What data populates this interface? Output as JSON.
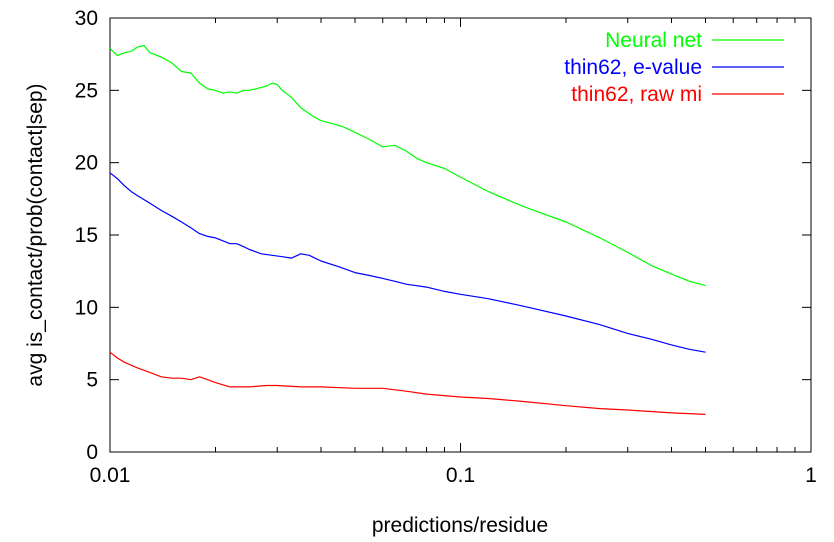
{
  "chart_data": {
    "type": "line",
    "title": "",
    "xlabel": "predictions/residue",
    "ylabel": "avg is_contact/prob(contact|sep)",
    "x_scale": "log",
    "xlim": [
      0.01,
      1
    ],
    "ylim": [
      0,
      30
    ],
    "x_ticks": [
      0.01,
      0.1,
      1
    ],
    "x_tick_labels": [
      "0.01",
      "0.1",
      "1"
    ],
    "y_ticks": [
      0,
      5,
      10,
      15,
      20,
      25,
      30
    ],
    "y_tick_labels": [
      "0",
      "5",
      "10",
      "15",
      "20",
      "25",
      "30"
    ],
    "grid": false,
    "legend_position": "top-right",
    "series": [
      {
        "name": "Neural net",
        "color": "#00ff00",
        "points": [
          [
            0.01,
            27.9
          ],
          [
            0.0105,
            27.4
          ],
          [
            0.011,
            27.6
          ],
          [
            0.0115,
            27.7
          ],
          [
            0.012,
            28.0
          ],
          [
            0.0125,
            28.1
          ],
          [
            0.013,
            27.6
          ],
          [
            0.014,
            27.3
          ],
          [
            0.015,
            26.9
          ],
          [
            0.016,
            26.3
          ],
          [
            0.017,
            26.2
          ],
          [
            0.018,
            25.5
          ],
          [
            0.019,
            25.1
          ],
          [
            0.02,
            25.0
          ],
          [
            0.021,
            24.8
          ],
          [
            0.022,
            24.9
          ],
          [
            0.023,
            24.8
          ],
          [
            0.024,
            25.0
          ],
          [
            0.025,
            25.0
          ],
          [
            0.026,
            25.1
          ],
          [
            0.027,
            25.2
          ],
          [
            0.028,
            25.3
          ],
          [
            0.029,
            25.5
          ],
          [
            0.03,
            25.4
          ],
          [
            0.031,
            25.0
          ],
          [
            0.033,
            24.5
          ],
          [
            0.035,
            23.8
          ],
          [
            0.038,
            23.2
          ],
          [
            0.04,
            22.9
          ],
          [
            0.043,
            22.7
          ],
          [
            0.046,
            22.5
          ],
          [
            0.05,
            22.1
          ],
          [
            0.055,
            21.6
          ],
          [
            0.06,
            21.1
          ],
          [
            0.065,
            21.2
          ],
          [
            0.07,
            20.8
          ],
          [
            0.075,
            20.3
          ],
          [
            0.08,
            20.0
          ],
          [
            0.09,
            19.6
          ],
          [
            0.1,
            19.0
          ],
          [
            0.12,
            18.0
          ],
          [
            0.15,
            17.0
          ],
          [
            0.2,
            15.9
          ],
          [
            0.25,
            14.8
          ],
          [
            0.3,
            13.8
          ],
          [
            0.35,
            12.9
          ],
          [
            0.4,
            12.3
          ],
          [
            0.45,
            11.8
          ],
          [
            0.5,
            11.5
          ]
        ]
      },
      {
        "name": "thin62, e-value",
        "color": "#0000ff",
        "points": [
          [
            0.01,
            19.3
          ],
          [
            0.0105,
            18.9
          ],
          [
            0.011,
            18.4
          ],
          [
            0.0115,
            18.0
          ],
          [
            0.012,
            17.7
          ],
          [
            0.013,
            17.2
          ],
          [
            0.014,
            16.7
          ],
          [
            0.015,
            16.3
          ],
          [
            0.016,
            15.9
          ],
          [
            0.017,
            15.5
          ],
          [
            0.018,
            15.1
          ],
          [
            0.019,
            14.9
          ],
          [
            0.02,
            14.8
          ],
          [
            0.021,
            14.6
          ],
          [
            0.022,
            14.4
          ],
          [
            0.023,
            14.4
          ],
          [
            0.024,
            14.2
          ],
          [
            0.025,
            14.0
          ],
          [
            0.027,
            13.7
          ],
          [
            0.029,
            13.6
          ],
          [
            0.031,
            13.5
          ],
          [
            0.033,
            13.4
          ],
          [
            0.035,
            13.7
          ],
          [
            0.037,
            13.6
          ],
          [
            0.04,
            13.2
          ],
          [
            0.045,
            12.8
          ],
          [
            0.05,
            12.4
          ],
          [
            0.055,
            12.2
          ],
          [
            0.06,
            12.0
          ],
          [
            0.065,
            11.8
          ],
          [
            0.07,
            11.6
          ],
          [
            0.08,
            11.4
          ],
          [
            0.09,
            11.1
          ],
          [
            0.1,
            10.9
          ],
          [
            0.12,
            10.6
          ],
          [
            0.15,
            10.1
          ],
          [
            0.2,
            9.4
          ],
          [
            0.25,
            8.8
          ],
          [
            0.3,
            8.2
          ],
          [
            0.35,
            7.8
          ],
          [
            0.4,
            7.4
          ],
          [
            0.45,
            7.1
          ],
          [
            0.5,
            6.9
          ]
        ]
      },
      {
        "name": "thin62, raw mi",
        "color": "#ff0000",
        "points": [
          [
            0.01,
            6.9
          ],
          [
            0.0105,
            6.5
          ],
          [
            0.011,
            6.2
          ],
          [
            0.012,
            5.8
          ],
          [
            0.013,
            5.5
          ],
          [
            0.014,
            5.2
          ],
          [
            0.015,
            5.1
          ],
          [
            0.016,
            5.1
          ],
          [
            0.017,
            5.0
          ],
          [
            0.018,
            5.2
          ],
          [
            0.019,
            5.0
          ],
          [
            0.02,
            4.8
          ],
          [
            0.022,
            4.5
          ],
          [
            0.025,
            4.5
          ],
          [
            0.028,
            4.6
          ],
          [
            0.03,
            4.6
          ],
          [
            0.035,
            4.5
          ],
          [
            0.04,
            4.5
          ],
          [
            0.05,
            4.4
          ],
          [
            0.06,
            4.4
          ],
          [
            0.07,
            4.2
          ],
          [
            0.08,
            4.0
          ],
          [
            0.1,
            3.8
          ],
          [
            0.12,
            3.7
          ],
          [
            0.15,
            3.5
          ],
          [
            0.2,
            3.2
          ],
          [
            0.25,
            3.0
          ],
          [
            0.3,
            2.9
          ],
          [
            0.4,
            2.7
          ],
          [
            0.5,
            2.6
          ]
        ]
      }
    ]
  }
}
